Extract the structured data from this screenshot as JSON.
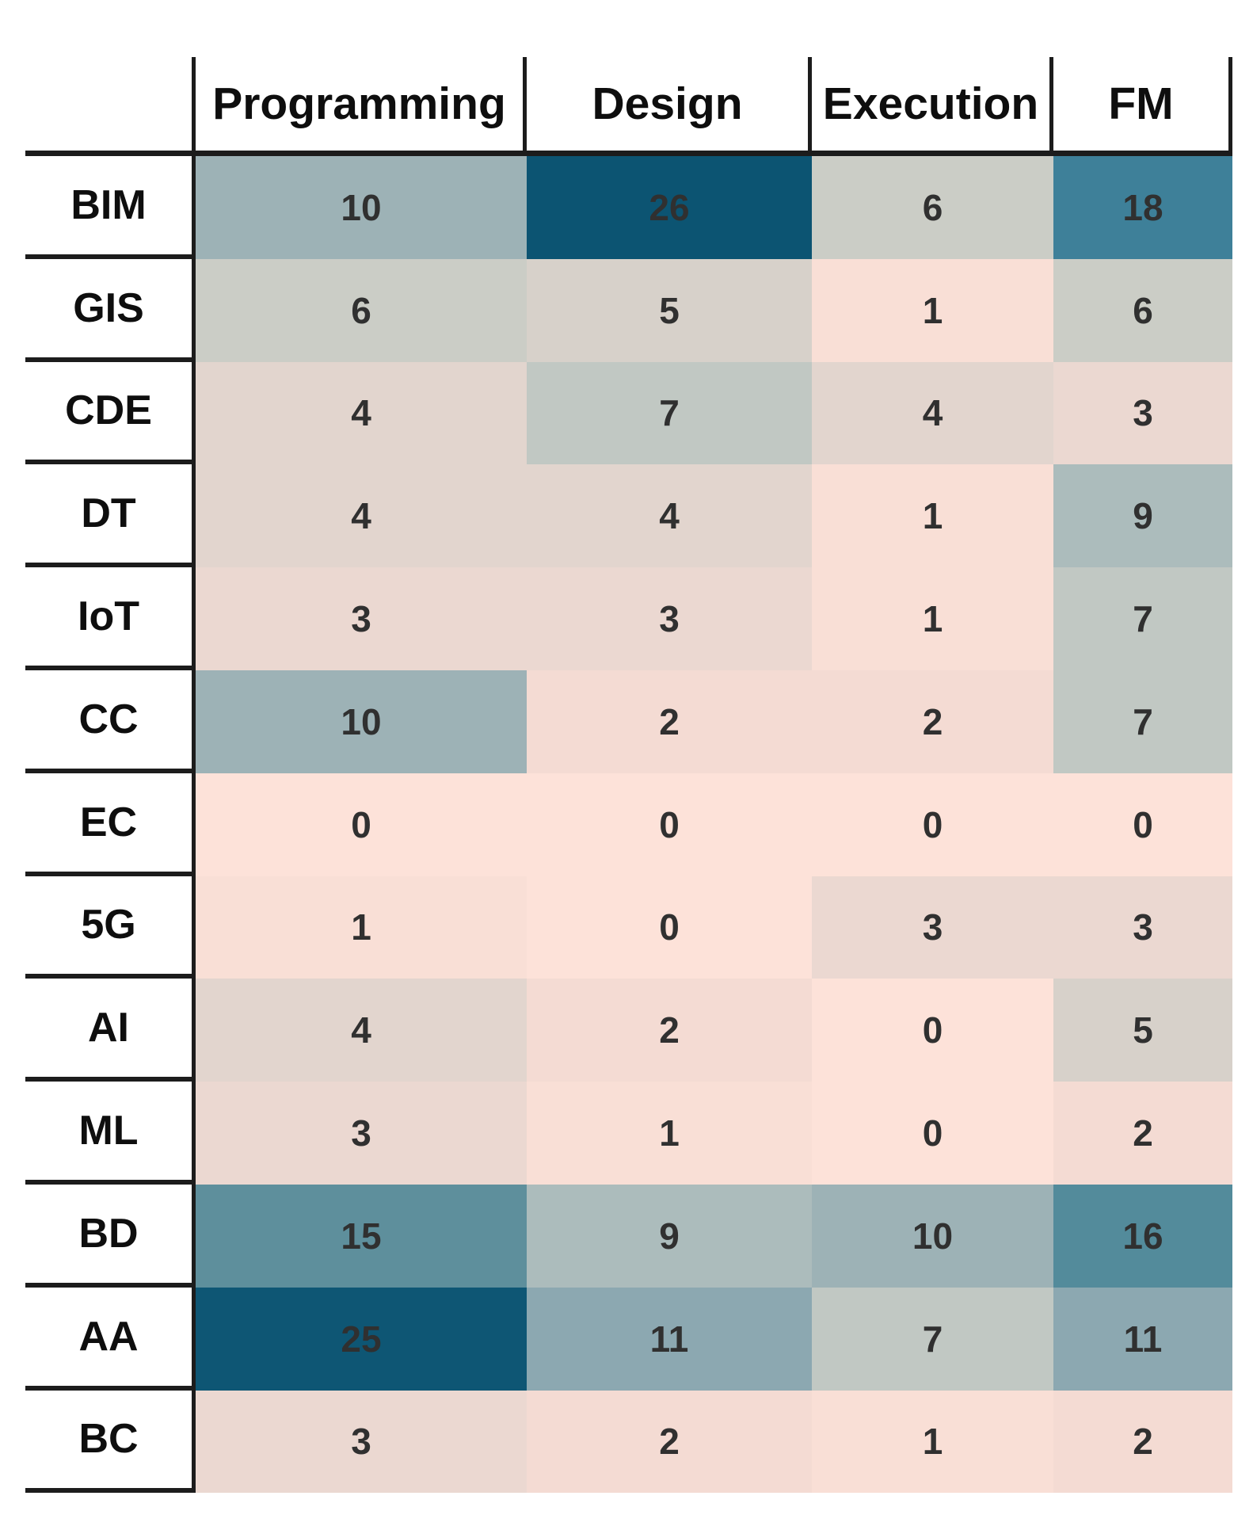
{
  "chart_data": {
    "type": "heatmap",
    "title": "",
    "columns": [
      "Programming",
      "Design",
      "Execution",
      "FM"
    ],
    "rows": [
      "BIM",
      "GIS",
      "CDE",
      "DT",
      "IoT",
      "CC",
      "EC",
      "5G",
      "AI",
      "ML",
      "BD",
      "AA",
      "BC"
    ],
    "values": [
      [
        10,
        26,
        6,
        18
      ],
      [
        6,
        5,
        1,
        6
      ],
      [
        4,
        7,
        4,
        3
      ],
      [
        4,
        4,
        1,
        9
      ],
      [
        3,
        3,
        1,
        7
      ],
      [
        10,
        2,
        2,
        7
      ],
      [
        0,
        0,
        0,
        0
      ],
      [
        1,
        0,
        3,
        3
      ],
      [
        4,
        2,
        0,
        5
      ],
      [
        3,
        1,
        0,
        2
      ],
      [
        15,
        9,
        10,
        16
      ],
      [
        25,
        11,
        7,
        11
      ],
      [
        3,
        2,
        1,
        2
      ]
    ],
    "value_range": [
      0,
      26
    ],
    "legend": "none",
    "grid": "borders-on-header-and-row-label-column-only",
    "colors": {
      "background": "#ffffff",
      "line_color": "#1c1c1c",
      "header_text": "#0e0e0e",
      "row_label_text": "#0e0e0e",
      "cell_text": "#303030"
    },
    "colormap_anchors": [
      {
        "value": 0,
        "color": "#fde2d9"
      },
      {
        "value": 2,
        "color": "#f4dbd3"
      },
      {
        "value": 4,
        "color": "#e2d5ce"
      },
      {
        "value": 6,
        "color": "#cbcdc6"
      },
      {
        "value": 7,
        "color": "#c1c8c3"
      },
      {
        "value": 9,
        "color": "#acbcbc"
      },
      {
        "value": 10,
        "color": "#9db2b6"
      },
      {
        "value": 11,
        "color": "#8ca8b1"
      },
      {
        "value": 15,
        "color": "#5e8f9c"
      },
      {
        "value": 16,
        "color": "#538b9b"
      },
      {
        "value": 18,
        "color": "#3e8099"
      },
      {
        "value": 25,
        "color": "#0e5674"
      },
      {
        "value": 26,
        "color": "#0c5472"
      }
    ]
  }
}
